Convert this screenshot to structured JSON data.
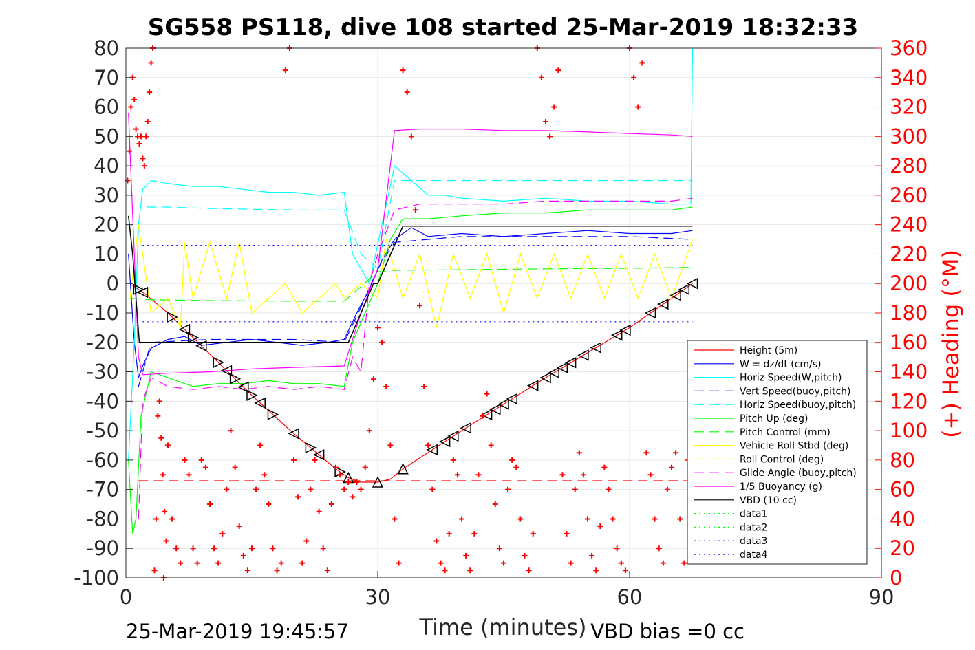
{
  "chart_data": {
    "type": "line",
    "title": "SG558 PS118, dive 108 started 25-Mar-2019 18:32:33",
    "xlabel": "Time (minutes)",
    "ylabel": "",
    "ylabel_right": "(+) Heading (°M)",
    "xlim": [
      0,
      90
    ],
    "ylim": [
      -100,
      80
    ],
    "ylim_right": [
      0,
      360
    ],
    "xticks": [
      0,
      30,
      60,
      90
    ],
    "yticks": [
      -100,
      -90,
      -80,
      -70,
      -60,
      -50,
      -40,
      -30,
      -20,
      -10,
      0,
      10,
      20,
      30,
      40,
      50,
      60,
      70,
      80
    ],
    "yticks_right": [
      0,
      20,
      40,
      60,
      80,
      100,
      120,
      140,
      160,
      180,
      200,
      220,
      240,
      260,
      280,
      300,
      320,
      340,
      360
    ],
    "grid": true,
    "legend_position": "lower-right",
    "footer_left": "25-Mar-2019 19:45:57",
    "footer_right": "VBD bias =0 cc",
    "colors": {
      "height": "#ff0000",
      "w": "#0000ff",
      "horiz": "#00ffff",
      "vert_buoy": "#0000ff",
      "horiz_buoy": "#00ffff",
      "pitch": "#00ff00",
      "pitch_ctrl": "#00ff00",
      "roll": "#ffff00",
      "roll_ctrl": "#ffff00",
      "glide": "#ff00ff",
      "buoy": "#ff00ff",
      "vbd": "#000000",
      "heading": "#ff0000"
    },
    "series": [
      {
        "name": "Height (5m)",
        "style": "solid",
        "color": "#ff0000",
        "x": [
          0.5,
          1.5,
          2.5,
          5,
          10,
          15,
          20,
          25,
          26.5,
          28,
          30,
          31.5,
          33,
          40,
          50,
          60,
          67.5
        ],
        "y": [
          0,
          -2,
          -4,
          -10,
          -24,
          -38,
          -51,
          -63,
          -66,
          -67.5,
          -67.5,
          -66.5,
          -63,
          -50,
          -32,
          -15,
          0
        ]
      },
      {
        "name": "W = dz/dt (cm/s)",
        "style": "solid",
        "color": "#0000ff",
        "x": [
          0.3,
          1,
          1.5,
          2,
          3,
          5,
          7,
          9,
          12,
          15,
          18,
          21,
          24,
          26,
          27.5,
          29,
          30.5,
          32,
          34,
          36,
          40,
          45,
          50,
          55,
          60,
          65,
          67.5
        ],
        "y": [
          10,
          -20,
          -32,
          -28,
          -22,
          -19,
          -18,
          -21,
          -20,
          -19,
          -20,
          -21,
          -20,
          -19,
          -10,
          -2,
          8,
          15,
          19,
          16,
          17,
          16,
          17,
          18,
          17,
          17,
          18
        ]
      },
      {
        "name": "Horiz Speed(W,pitch)",
        "style": "solid",
        "color": "#00ffff",
        "x": [
          0.3,
          1,
          1.5,
          2,
          3,
          5,
          8,
          11,
          14,
          17,
          20,
          23,
          26,
          27,
          29,
          30.5,
          32,
          34,
          36,
          38,
          40,
          45,
          50,
          55,
          60,
          65,
          67.3,
          67.5
        ],
        "y": [
          -60,
          -20,
          20,
          32,
          35,
          34,
          33,
          33,
          32,
          31,
          31,
          30,
          31,
          10,
          0,
          20,
          40,
          35,
          30,
          30,
          29,
          28,
          29,
          28,
          28,
          27,
          27,
          80
        ]
      },
      {
        "name": "Vert Speed(buoy,pitch)",
        "style": "dash",
        "color": "#0000ff",
        "x": [
          1.5,
          3,
          10,
          20,
          26,
          28,
          30,
          32,
          40,
          50,
          60,
          67.5
        ],
        "y": [
          -35,
          -20,
          -19,
          -19,
          -20,
          -8,
          5,
          14,
          16,
          16,
          16,
          15
        ]
      },
      {
        "name": "Horiz Speed(buoy,pitch)",
        "style": "dash",
        "color": "#00ffff",
        "x": [
          2.5,
          5,
          10,
          20,
          26,
          28,
          30,
          32,
          40,
          50,
          60,
          67.5
        ],
        "y": [
          26,
          26,
          25.5,
          25,
          25,
          10,
          5,
          35,
          35,
          35,
          35,
          35
        ]
      },
      {
        "name": "Pitch Up (deg)",
        "style": "solid",
        "color": "#00ff00",
        "x": [
          0.3,
          0.8,
          1.2,
          1.8,
          3,
          5,
          8,
          11,
          14,
          17,
          20,
          23,
          26,
          27,
          28.5,
          30,
          31.5,
          33,
          36,
          40,
          45,
          50,
          55,
          60,
          65,
          67.5
        ],
        "y": [
          -60,
          -85,
          -80,
          -45,
          -30,
          -32,
          -35,
          -34,
          -34,
          -33,
          -34,
          -34,
          -35,
          -20,
          -10,
          0,
          15,
          22,
          22,
          23,
          24,
          24,
          25,
          25,
          25,
          26
        ]
      },
      {
        "name": "Pitch Control (mm)",
        "style": "dash",
        "color": "#00ff00",
        "x": [
          0.5,
          3,
          10,
          20,
          26,
          30,
          32,
          40,
          50,
          60,
          67.5
        ],
        "y": [
          -5,
          -5.5,
          -5.8,
          -6,
          -6,
          4,
          4.5,
          4.7,
          5,
          5.2,
          5.5
        ]
      },
      {
        "name": "Vehicle Roll Stbd (deg)",
        "style": "solid",
        "color": "#ffff00",
        "x": [
          0.5,
          1.5,
          3,
          5,
          6.5,
          7,
          8,
          10,
          12,
          13.5,
          15,
          17,
          19,
          21,
          23,
          25,
          26,
          28,
          30,
          31,
          33,
          35,
          37,
          39,
          41,
          43,
          45,
          47,
          49,
          51,
          53,
          55,
          57,
          59,
          61,
          63,
          65,
          67.5
        ],
        "y": [
          -5,
          20,
          -10,
          -5,
          -15,
          14,
          -5,
          14,
          -5,
          14,
          -10,
          -5,
          0,
          -10,
          -5,
          0,
          -5,
          0,
          -5,
          15,
          -5,
          10,
          -15,
          10,
          -5,
          10,
          -10,
          10,
          -5,
          10,
          -5,
          10,
          -5,
          10,
          -5,
          10,
          -5,
          15
        ]
      },
      {
        "name": "Roll Control (deg)",
        "style": "dash",
        "color": "#ffff00",
        "x": [],
        "y": []
      },
      {
        "name": "Glide Angle (buoy,pitch)",
        "style": "dash",
        "color": "#ff00ff",
        "x": [
          1.5,
          2,
          3,
          5,
          8,
          11,
          14,
          17,
          20,
          23,
          26,
          27,
          28,
          29,
          30,
          32,
          35,
          40,
          45,
          50,
          55,
          60,
          65,
          67.5
        ],
        "y": [
          -80,
          -40,
          -32,
          -35,
          -36,
          -35,
          -36,
          -35,
          -36,
          -35,
          -36,
          -25,
          -30,
          0,
          10,
          25,
          27,
          27,
          27,
          28,
          28,
          28,
          28,
          29
        ]
      },
      {
        "name": "1/5 Buoyancy (g)",
        "style": "solid",
        "color": "#ff00ff",
        "x": [
          0.3,
          1,
          1.5,
          2,
          5,
          10,
          15,
          20,
          26,
          28,
          30,
          32,
          35,
          40,
          45,
          50,
          55,
          60,
          65,
          67.5
        ],
        "y": [
          58,
          10,
          -25,
          -31,
          -30.5,
          -30,
          -29,
          -28.5,
          -28,
          -10,
          5,
          52,
          52.5,
          52.5,
          52,
          52,
          51.5,
          51,
          50.5,
          50
        ]
      },
      {
        "name": "VBD (10 cc)",
        "style": "solid",
        "color": "#000000",
        "x": [
          0.3,
          0.8,
          1.6,
          10,
          20,
          26.5,
          29.5,
          30,
          33,
          40,
          50,
          60,
          67.5
        ],
        "y": [
          23,
          10,
          -20,
          -20,
          -20,
          -20,
          0,
          0,
          19.5,
          19.5,
          19.5,
          19.5,
          19.5
        ]
      },
      {
        "name": "data1",
        "style": "dot",
        "color": "#00ff00",
        "x": [],
        "y": []
      },
      {
        "name": "data2",
        "style": "dot",
        "color": "#00ff00",
        "x": [],
        "y": []
      },
      {
        "name": "data3",
        "style": "dot",
        "color": "#0000ff",
        "x": [
          2,
          67.5
        ],
        "y": [
          13,
          13
        ]
      },
      {
        "name": "data4",
        "style": "dot",
        "color": "#0000ff",
        "x": [
          2,
          67.5
        ],
        "y": [
          -13,
          -13
        ]
      }
    ],
    "reference_lines": [
      {
        "style": "dash",
        "color": "#ff0000",
        "y": -67,
        "x": [
          1.5,
          67.5
        ]
      }
    ],
    "vbd_markers": {
      "descent_x": [
        1.5,
        2,
        5.5,
        7,
        8,
        9,
        11,
        12,
        13,
        14,
        15,
        16,
        17.5,
        20,
        22,
        23,
        25.5
      ],
      "bottom_x": [
        26.5,
        30,
        33
      ],
      "ascent_x": [
        36.5,
        38,
        39,
        40.5,
        43,
        44,
        45,
        46,
        48.5,
        50,
        51,
        52,
        53,
        54.5,
        56,
        58.5,
        59.5,
        62.5,
        64,
        65.5,
        66.5,
        67.5
      ]
    },
    "heading": {
      "axis": "right",
      "marker": "+",
      "color": "#ff0000",
      "x": [
        0.2,
        0.4,
        0.6,
        0.8,
        1.0,
        1.2,
        1.4,
        1.6,
        1.8,
        2.0,
        2.2,
        2.4,
        2.6,
        2.8,
        3.0,
        3.2,
        3.4,
        3.6,
        3.8,
        4.0,
        4.2,
        4.4,
        4.6,
        4.8,
        4.5,
        5.0,
        5.5,
        6.0,
        6.5,
        7.0,
        7.5,
        8.0,
        8.5,
        9.0,
        9.5,
        10.0,
        10.5,
        11.0,
        11.5,
        12.0,
        12.5,
        13.0,
        13.5,
        14.0,
        14.5,
        15.0,
        15.5,
        16.0,
        16.5,
        17.0,
        17.5,
        18.0,
        18.5,
        19.0,
        19.5,
        20.0,
        20.5,
        21.0,
        21.5,
        22.0,
        22.5,
        23.0,
        23.5,
        24.0,
        24.5,
        25.0,
        25.5,
        26.0,
        26.5,
        27.0,
        27.5,
        28.0,
        28.5,
        29.0,
        29.5,
        30.0,
        30.5,
        31.0,
        31.5,
        32.0,
        32.5,
        33.0,
        33.5,
        34.0,
        34.5,
        35.0,
        35.5,
        36.0,
        36.5,
        37.0,
        37.5,
        38.0,
        38.5,
        39.0,
        39.5,
        40.0,
        40.5,
        41.0,
        41.5,
        42.0,
        42.5,
        43.0,
        43.5,
        44.0,
        44.5,
        45.0,
        45.5,
        46.0,
        46.5,
        47.0,
        47.5,
        48.0,
        48.5,
        49.0,
        49.5,
        50.0,
        50.5,
        51.0,
        51.5,
        52.0,
        52.5,
        53.0,
        53.5,
        54.0,
        54.5,
        55.0,
        55.5,
        56.0,
        56.5,
        57.0,
        57.5,
        58.0,
        58.5,
        59.0,
        59.5,
        60.0,
        60.5,
        61.0,
        61.5,
        62.0,
        62.5,
        63.0,
        63.5,
        64.0,
        64.5,
        65.0,
        65.5,
        66.0,
        66.5,
        67.0
      ],
      "y": [
        270,
        290,
        320,
        340,
        325,
        305,
        300,
        295,
        300,
        285,
        280,
        300,
        310,
        330,
        350,
        360,
        5,
        40,
        110,
        120,
        95,
        70,
        45,
        25,
        0,
        90,
        40,
        20,
        10,
        80,
        70,
        20,
        10,
        80,
        75,
        50,
        20,
        10,
        30,
        60,
        100,
        75,
        35,
        15,
        5,
        20,
        60,
        90,
        70,
        50,
        20,
        5,
        10,
        345,
        360,
        80,
        55,
        10,
        25,
        60,
        80,
        45,
        20,
        5,
        50,
        75,
        70,
        60,
        65,
        55,
        65,
        60,
        75,
        100,
        135,
        170,
        160,
        130,
        90,
        40,
        10,
        345,
        330,
        300,
        250,
        185,
        130,
        90,
        60,
        25,
        10,
        5,
        30,
        80,
        70,
        40,
        15,
        5,
        30,
        70,
        110,
        125,
        90,
        50,
        20,
        10,
        60,
        80,
        75,
        40,
        15,
        5,
        30,
        360,
        340,
        310,
        300,
        320,
        345,
        70,
        30,
        10,
        60,
        85,
        70,
        40,
        15,
        5,
        35,
        75,
        60,
        40,
        20,
        10,
        5,
        360,
        340,
        320,
        350,
        85,
        70,
        40,
        20,
        10,
        60,
        75,
        85,
        40,
        10,
        80
      ]
    }
  }
}
